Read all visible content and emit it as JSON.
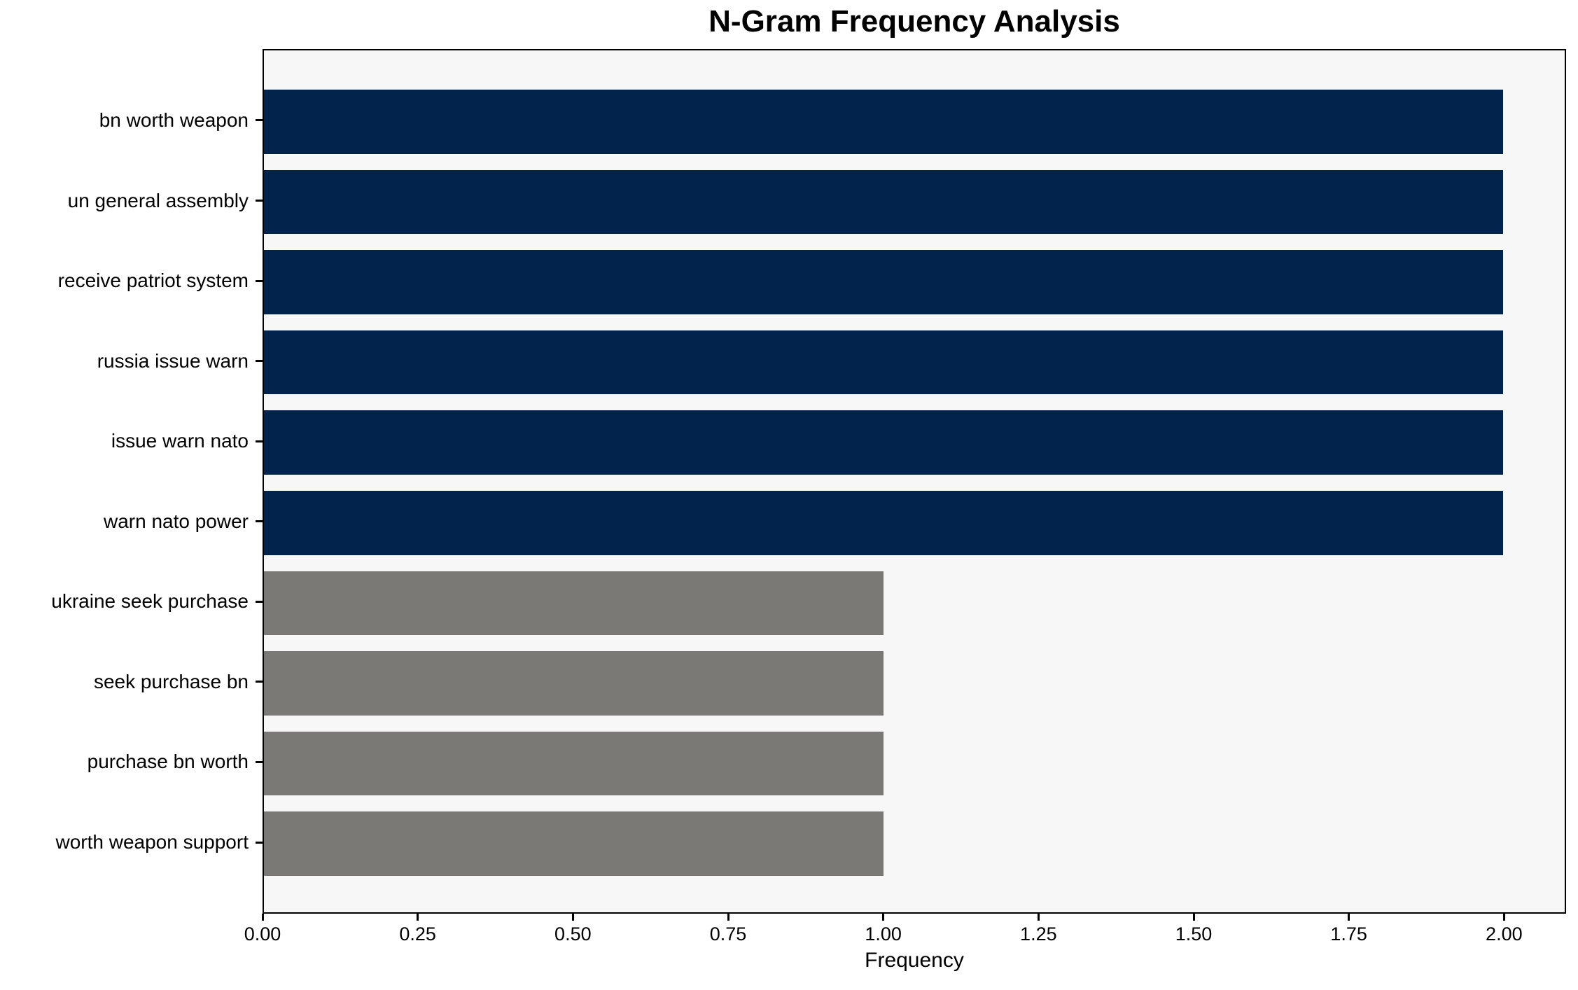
{
  "chart_data": {
    "type": "bar",
    "orientation": "horizontal",
    "title": "N-Gram Frequency Analysis",
    "xlabel": "Frequency",
    "ylabel": "",
    "categories": [
      "bn worth weapon",
      "un general assembly",
      "receive patriot system",
      "russia issue warn",
      "issue warn nato",
      "warn nato power",
      "ukraine seek purchase",
      "seek purchase bn",
      "purchase bn worth",
      "worth weapon support"
    ],
    "values": [
      2,
      2,
      2,
      2,
      2,
      2,
      1,
      1,
      1,
      1
    ],
    "bar_colors": [
      "#02234c",
      "#02234c",
      "#02234c",
      "#02234c",
      "#02234c",
      "#02234c",
      "#7a7975",
      "#7a7975",
      "#7a7975",
      "#7a7975"
    ],
    "xlim": [
      0,
      2.1
    ],
    "x_ticks": [
      "0.00",
      "0.25",
      "0.50",
      "0.75",
      "1.00",
      "1.25",
      "1.50",
      "1.75",
      "2.00"
    ],
    "x_tick_values": [
      0,
      0.25,
      0.5,
      0.75,
      1.0,
      1.25,
      1.5,
      1.75,
      2.0
    ],
    "grid": false,
    "legend": null,
    "colors": {
      "navy": "#02234c",
      "gray": "#7a7975",
      "plot_background": "#f7f7f7",
      "figure_background": "#ffffff",
      "spine": "#000000",
      "text": "#000000"
    }
  }
}
